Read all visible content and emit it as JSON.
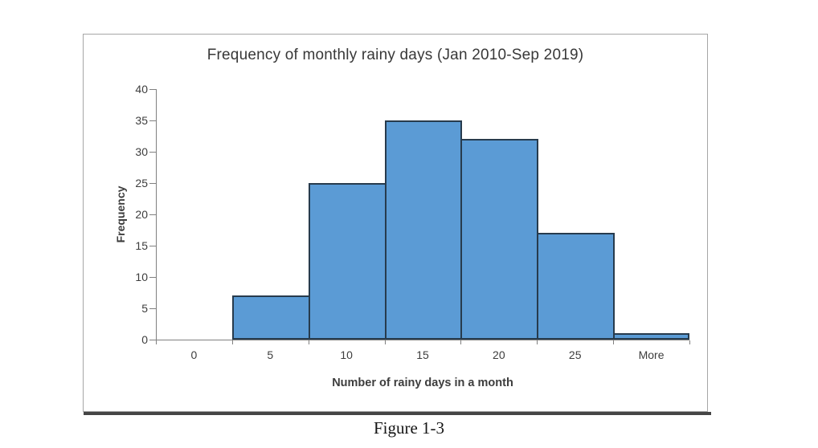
{
  "figure": {
    "caption": "Figure 1-3"
  },
  "chart_data": {
    "type": "bar",
    "subtype": "histogram",
    "title": "Frequency of monthly rainy days (Jan 2010-Sep 2019)",
    "xlabel": "Number of rainy days in a month",
    "ylabel": "Frequency",
    "categories": [
      "0",
      "5",
      "10",
      "15",
      "20",
      "25",
      "More"
    ],
    "values": [
      0,
      7,
      25,
      35,
      32,
      17,
      1
    ],
    "ylim": [
      0,
      40
    ],
    "yticks": [
      0,
      5,
      10,
      15,
      20,
      25,
      30,
      35,
      40
    ],
    "grid": false,
    "legend_position": "none",
    "bar_gap": 0,
    "colors": {
      "bar_fill": "#5b9bd5",
      "bar_border": "#273b4d",
      "axis_line": "#808080",
      "label_text": "#3d3d3d"
    }
  }
}
